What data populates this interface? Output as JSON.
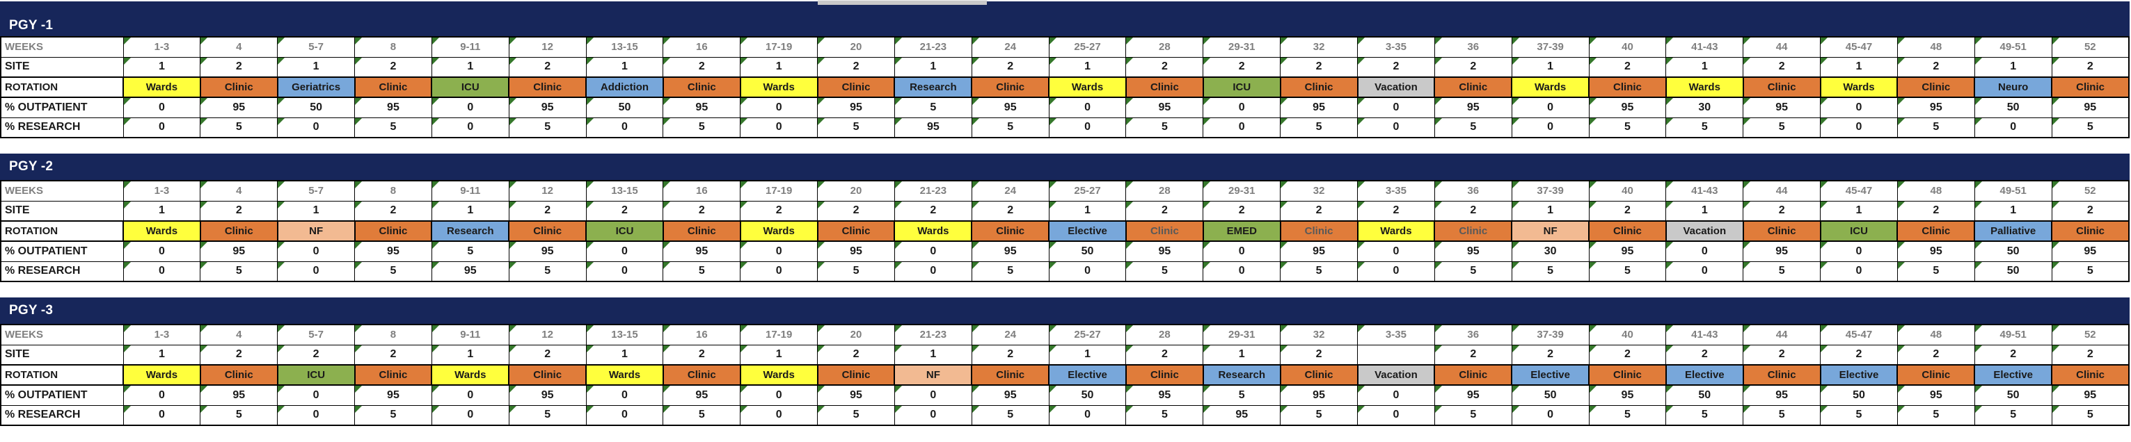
{
  "colors": {
    "header_navy": "#17265A",
    "grid_border": "#000000",
    "error_triangle_green": "#35772B",
    "week_text_gray": "#7F7F7F",
    "muted_text_gray": "#595959",
    "scrollbar_gray": "#C9C9C9",
    "background": "#FFFFFF"
  },
  "rotation_colors": {
    "Wards": "#FFFF3D",
    "Clinic": "#E07C3A",
    "ICU": "#8CB04F",
    "EMED": "#8CB04F",
    "NF": "#F2BA92",
    "Vacation": "#C9C9C9",
    "Geriatrics": "#78A7DA",
    "Addiction": "#78A7DA",
    "Research": "#78A7DA",
    "Neuro": "#78A7DA",
    "Elective": "#78A7DA",
    "Palliative": "#78A7DA"
  },
  "row_labels": {
    "weeks": "WEEKS",
    "site": "SITE",
    "rotation": "ROTATION",
    "outpatient": "% OUTPATIENT",
    "research": "% RESEARCH"
  },
  "weeks": [
    "1-3",
    "4",
    "5-7",
    "8",
    "9-11",
    "12",
    "13-15",
    "16",
    "17-19",
    "20",
    "21-23",
    "24",
    "25-27",
    "28",
    "29-31",
    "32",
    "3-35",
    "36",
    "37-39",
    "40",
    "41-43",
    "44",
    "45-47",
    "48",
    "49-51",
    "52"
  ],
  "blocks": [
    {
      "title": "PGY -1",
      "site": [
        "1",
        "2",
        "1",
        "2",
        "1",
        "2",
        "1",
        "2",
        "1",
        "2",
        "1",
        "2",
        "1",
        "2",
        "2",
        "2",
        "2",
        "2",
        "1",
        "2",
        "1",
        "2",
        "1",
        "2",
        "1",
        "2"
      ],
      "rotation": [
        "Wards",
        "Clinic",
        "Geriatrics",
        "Clinic",
        "ICU",
        "Clinic",
        "Addiction",
        "Clinic",
        "Wards",
        "Clinic",
        "Research",
        "Clinic",
        "Wards",
        "Clinic",
        "ICU",
        "Clinic",
        "Vacation",
        "Clinic",
        "Wards",
        "Clinic",
        "Wards",
        "Clinic",
        "Wards",
        "Clinic",
        "Neuro",
        "Clinic"
      ],
      "outpatient": [
        "0",
        "95",
        "50",
        "95",
        "0",
        "95",
        "50",
        "95",
        "0",
        "95",
        "5",
        "95",
        "0",
        "95",
        "0",
        "95",
        "0",
        "95",
        "0",
        "95",
        "30",
        "95",
        "0",
        "95",
        "50",
        "95"
      ],
      "research": [
        "0",
        "5",
        "0",
        "5",
        "0",
        "5",
        "0",
        "5",
        "0",
        "5",
        "95",
        "5",
        "0",
        "5",
        "0",
        "5",
        "0",
        "5",
        "0",
        "5",
        "5",
        "5",
        "0",
        "5",
        "0",
        "5"
      ],
      "muted_rotation_indexes": []
    },
    {
      "title": "PGY -2",
      "site": [
        "1",
        "2",
        "1",
        "2",
        "1",
        "2",
        "2",
        "2",
        "2",
        "2",
        "2",
        "2",
        "1",
        "2",
        "2",
        "2",
        "2",
        "2",
        "1",
        "2",
        "1",
        "2",
        "1",
        "2",
        "1",
        "2"
      ],
      "rotation": [
        "Wards",
        "Clinic",
        "NF",
        "Clinic",
        "Research",
        "Clinic",
        "ICU",
        "Clinic",
        "Wards",
        "Clinic",
        "Wards",
        "Clinic",
        "Elective",
        "Clinic",
        "EMED",
        "Clinic",
        "Wards",
        "Clinic",
        "NF",
        "Clinic",
        "Vacation",
        "Clinic",
        "ICU",
        "Clinic",
        "Palliative",
        "Clinic"
      ],
      "outpatient": [
        "0",
        "95",
        "0",
        "95",
        "5",
        "95",
        "0",
        "95",
        "0",
        "95",
        "0",
        "95",
        "50",
        "95",
        "0",
        "95",
        "0",
        "95",
        "30",
        "95",
        "0",
        "95",
        "0",
        "95",
        "50",
        "95"
      ],
      "research": [
        "0",
        "5",
        "0",
        "5",
        "95",
        "5",
        "0",
        "5",
        "0",
        "5",
        "0",
        "5",
        "0",
        "5",
        "0",
        "5",
        "0",
        "5",
        "5",
        "5",
        "0",
        "5",
        "0",
        "5",
        "50",
        "5"
      ],
      "muted_rotation_indexes": [
        13,
        15,
        17
      ]
    },
    {
      "title": "PGY -3",
      "site": [
        "1",
        "2",
        "2",
        "2",
        "1",
        "2",
        "1",
        "2",
        "1",
        "2",
        "1",
        "2",
        "1",
        "2",
        "1",
        "2",
        "",
        "2",
        "2",
        "2",
        "2",
        "2",
        "2",
        "2",
        "2",
        "2"
      ],
      "rotation": [
        "Wards",
        "Clinic",
        "ICU",
        "Clinic",
        "Wards",
        "Clinic",
        "Wards",
        "Clinic",
        "Wards",
        "Clinic",
        "NF",
        "Clinic",
        "Elective",
        "Clinic",
        "Research",
        "Clinic",
        "Vacation",
        "Clinic",
        "Elective",
        "Clinic",
        "Elective",
        "Clinic",
        "Elective",
        "Clinic",
        "Elective",
        "Clinic"
      ],
      "outpatient": [
        "0",
        "95",
        "0",
        "95",
        "0",
        "95",
        "0",
        "95",
        "0",
        "95",
        "0",
        "95",
        "50",
        "95",
        "5",
        "95",
        "0",
        "95",
        "50",
        "95",
        "50",
        "95",
        "50",
        "95",
        "50",
        "95"
      ],
      "research": [
        "0",
        "5",
        "0",
        "5",
        "0",
        "5",
        "0",
        "5",
        "0",
        "5",
        "0",
        "5",
        "0",
        "5",
        "95",
        "5",
        "0",
        "5",
        "0",
        "5",
        "5",
        "5",
        "5",
        "5",
        "5",
        "5"
      ],
      "muted_rotation_indexes": []
    }
  ]
}
